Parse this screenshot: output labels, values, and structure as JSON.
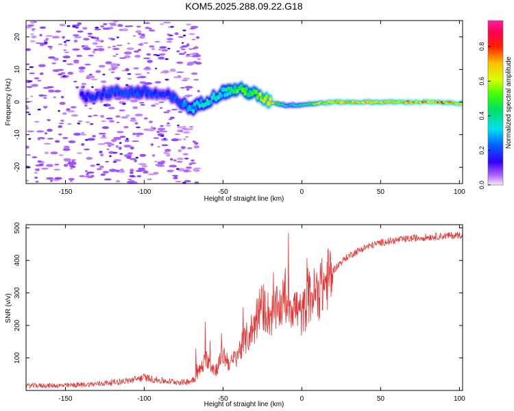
{
  "figure_title": "KOM5.2025.288.09.22.G18",
  "colors": {
    "snr_line": "#e83030",
    "axis": "#000000",
    "background": "#ffffff"
  },
  "chart_data": [
    {
      "type": "heatmap",
      "title": "KOM5.2025.288.09.22.G18",
      "xlabel": "Height of straight line (km)",
      "ylabel": "Frequency (Hz)",
      "xlim": [
        -175,
        102
      ],
      "ylim": [
        -25,
        25
      ],
      "x_ticks": [
        -150,
        -100,
        -50,
        0,
        50,
        100
      ],
      "y_ticks": [
        -20,
        -10,
        0,
        10,
        20
      ],
      "colorbar": {
        "label": "Normalized spectral amplitude",
        "range": [
          0,
          0.95
        ],
        "ticks": [
          0.0,
          0.2,
          0.4,
          0.6,
          0.8
        ],
        "colormap": "rainbow (purple-blue-cyan-green-yellow-orange-red-magenta)"
      },
      "ridge": {
        "description": "frequency track of main spectral ridge",
        "x": [
          -140,
          -120,
          -100,
          -85,
          -70,
          -60,
          -50,
          -40,
          -30,
          -20,
          -10,
          0,
          20,
          50,
          80,
          100
        ],
        "freq": [
          1.5,
          3,
          3,
          2,
          -2,
          0.5,
          3,
          4,
          2.5,
          0,
          -1,
          -0.8,
          0,
          0,
          0,
          -0.3
        ],
        "amplitude": [
          0.18,
          0.2,
          0.22,
          0.18,
          0.3,
          0.35,
          0.4,
          0.5,
          0.5,
          0.7,
          0.3,
          0.4,
          0.7,
          0.65,
          0.75,
          0.7
        ]
      }
    },
    {
      "type": "line",
      "title": "",
      "xlabel": "Height of straight line (km)",
      "ylabel": "SNR (v/v)",
      "xlim": [
        -175,
        102
      ],
      "ylim": [
        0,
        510
      ],
      "x_ticks": [
        -150,
        -100,
        -50,
        0,
        50,
        100
      ],
      "y_ticks": [
        100,
        200,
        300,
        400,
        500
      ],
      "series": [
        {
          "name": "SNR",
          "x": [
            -175,
            -150,
            -130,
            -110,
            -100,
            -90,
            -75,
            -70,
            -65,
            -60,
            -55,
            -50,
            -45,
            -40,
            -35,
            -30,
            -25,
            -20,
            -15,
            -10,
            -5,
            0,
            5,
            10,
            15,
            20,
            25,
            30,
            40,
            50,
            60,
            70,
            80,
            90,
            100,
            102
          ],
          "y": [
            15,
            15,
            20,
            30,
            40,
            30,
            25,
            30,
            60,
            100,
            60,
            110,
            80,
            120,
            160,
            200,
            260,
            230,
            250,
            280,
            260,
            230,
            290,
            300,
            330,
            370,
            395,
            415,
            440,
            455,
            462,
            468,
            472,
            475,
            478,
            480
          ]
        }
      ]
    }
  ]
}
